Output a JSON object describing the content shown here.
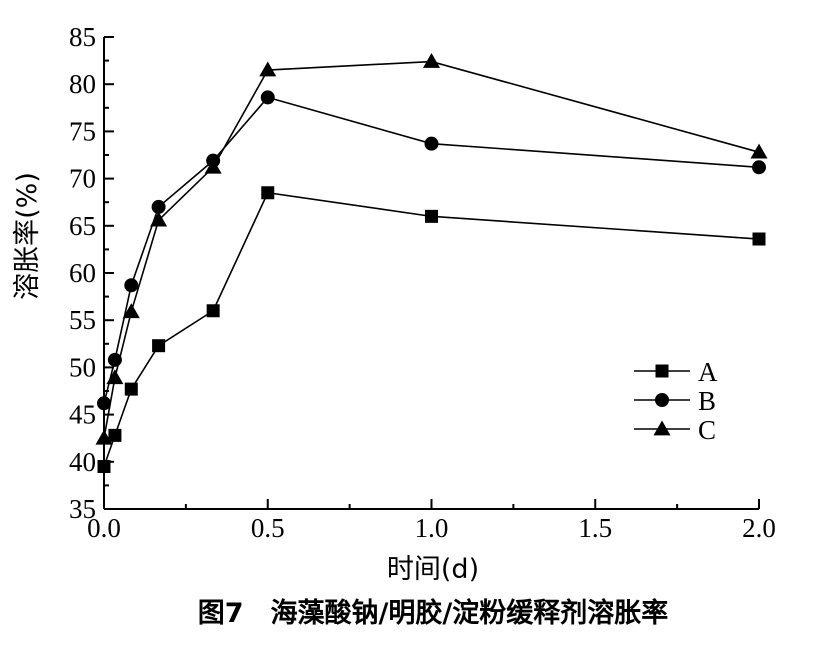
{
  "chart_data": {
    "type": "line",
    "title": "",
    "caption": "图7　海藻酸钠/明胶/淀粉缓释剂溶胀率",
    "xlabel": "时间(d)",
    "ylabel": "溶胀率(%)",
    "xlim": [
      0,
      2.0
    ],
    "ylim": [
      35,
      85
    ],
    "x_ticks": [
      "0.0",
      "0.5",
      "1.0",
      "1.5",
      "2.0"
    ],
    "y_ticks": [
      "35",
      "40",
      "45",
      "50",
      "55",
      "60",
      "65",
      "70",
      "75",
      "80",
      "85"
    ],
    "grid": false,
    "legend": "center-right",
    "series": [
      {
        "name": "A",
        "marker": "square",
        "x": [
          0.0,
          0.0333,
          0.0833,
          0.1667,
          0.3333,
          0.5,
          1.0,
          2.0
        ],
        "y": [
          39.5,
          42.8,
          47.7,
          52.3,
          56.0,
          68.5,
          66.0,
          63.6
        ]
      },
      {
        "name": "B",
        "marker": "circle",
        "x": [
          0.0,
          0.0333,
          0.0833,
          0.1667,
          0.3333,
          0.5,
          1.0,
          2.0
        ],
        "y": [
          46.2,
          50.8,
          58.7,
          67.0,
          71.9,
          78.6,
          73.7,
          71.2
        ]
      },
      {
        "name": "C",
        "marker": "triangle",
        "x": [
          0.0,
          0.0333,
          0.0833,
          0.1667,
          0.3333,
          0.5,
          1.0,
          2.0
        ],
        "y": [
          42.5,
          48.9,
          55.9,
          65.6,
          71.2,
          81.5,
          82.4,
          72.8
        ]
      }
    ]
  }
}
